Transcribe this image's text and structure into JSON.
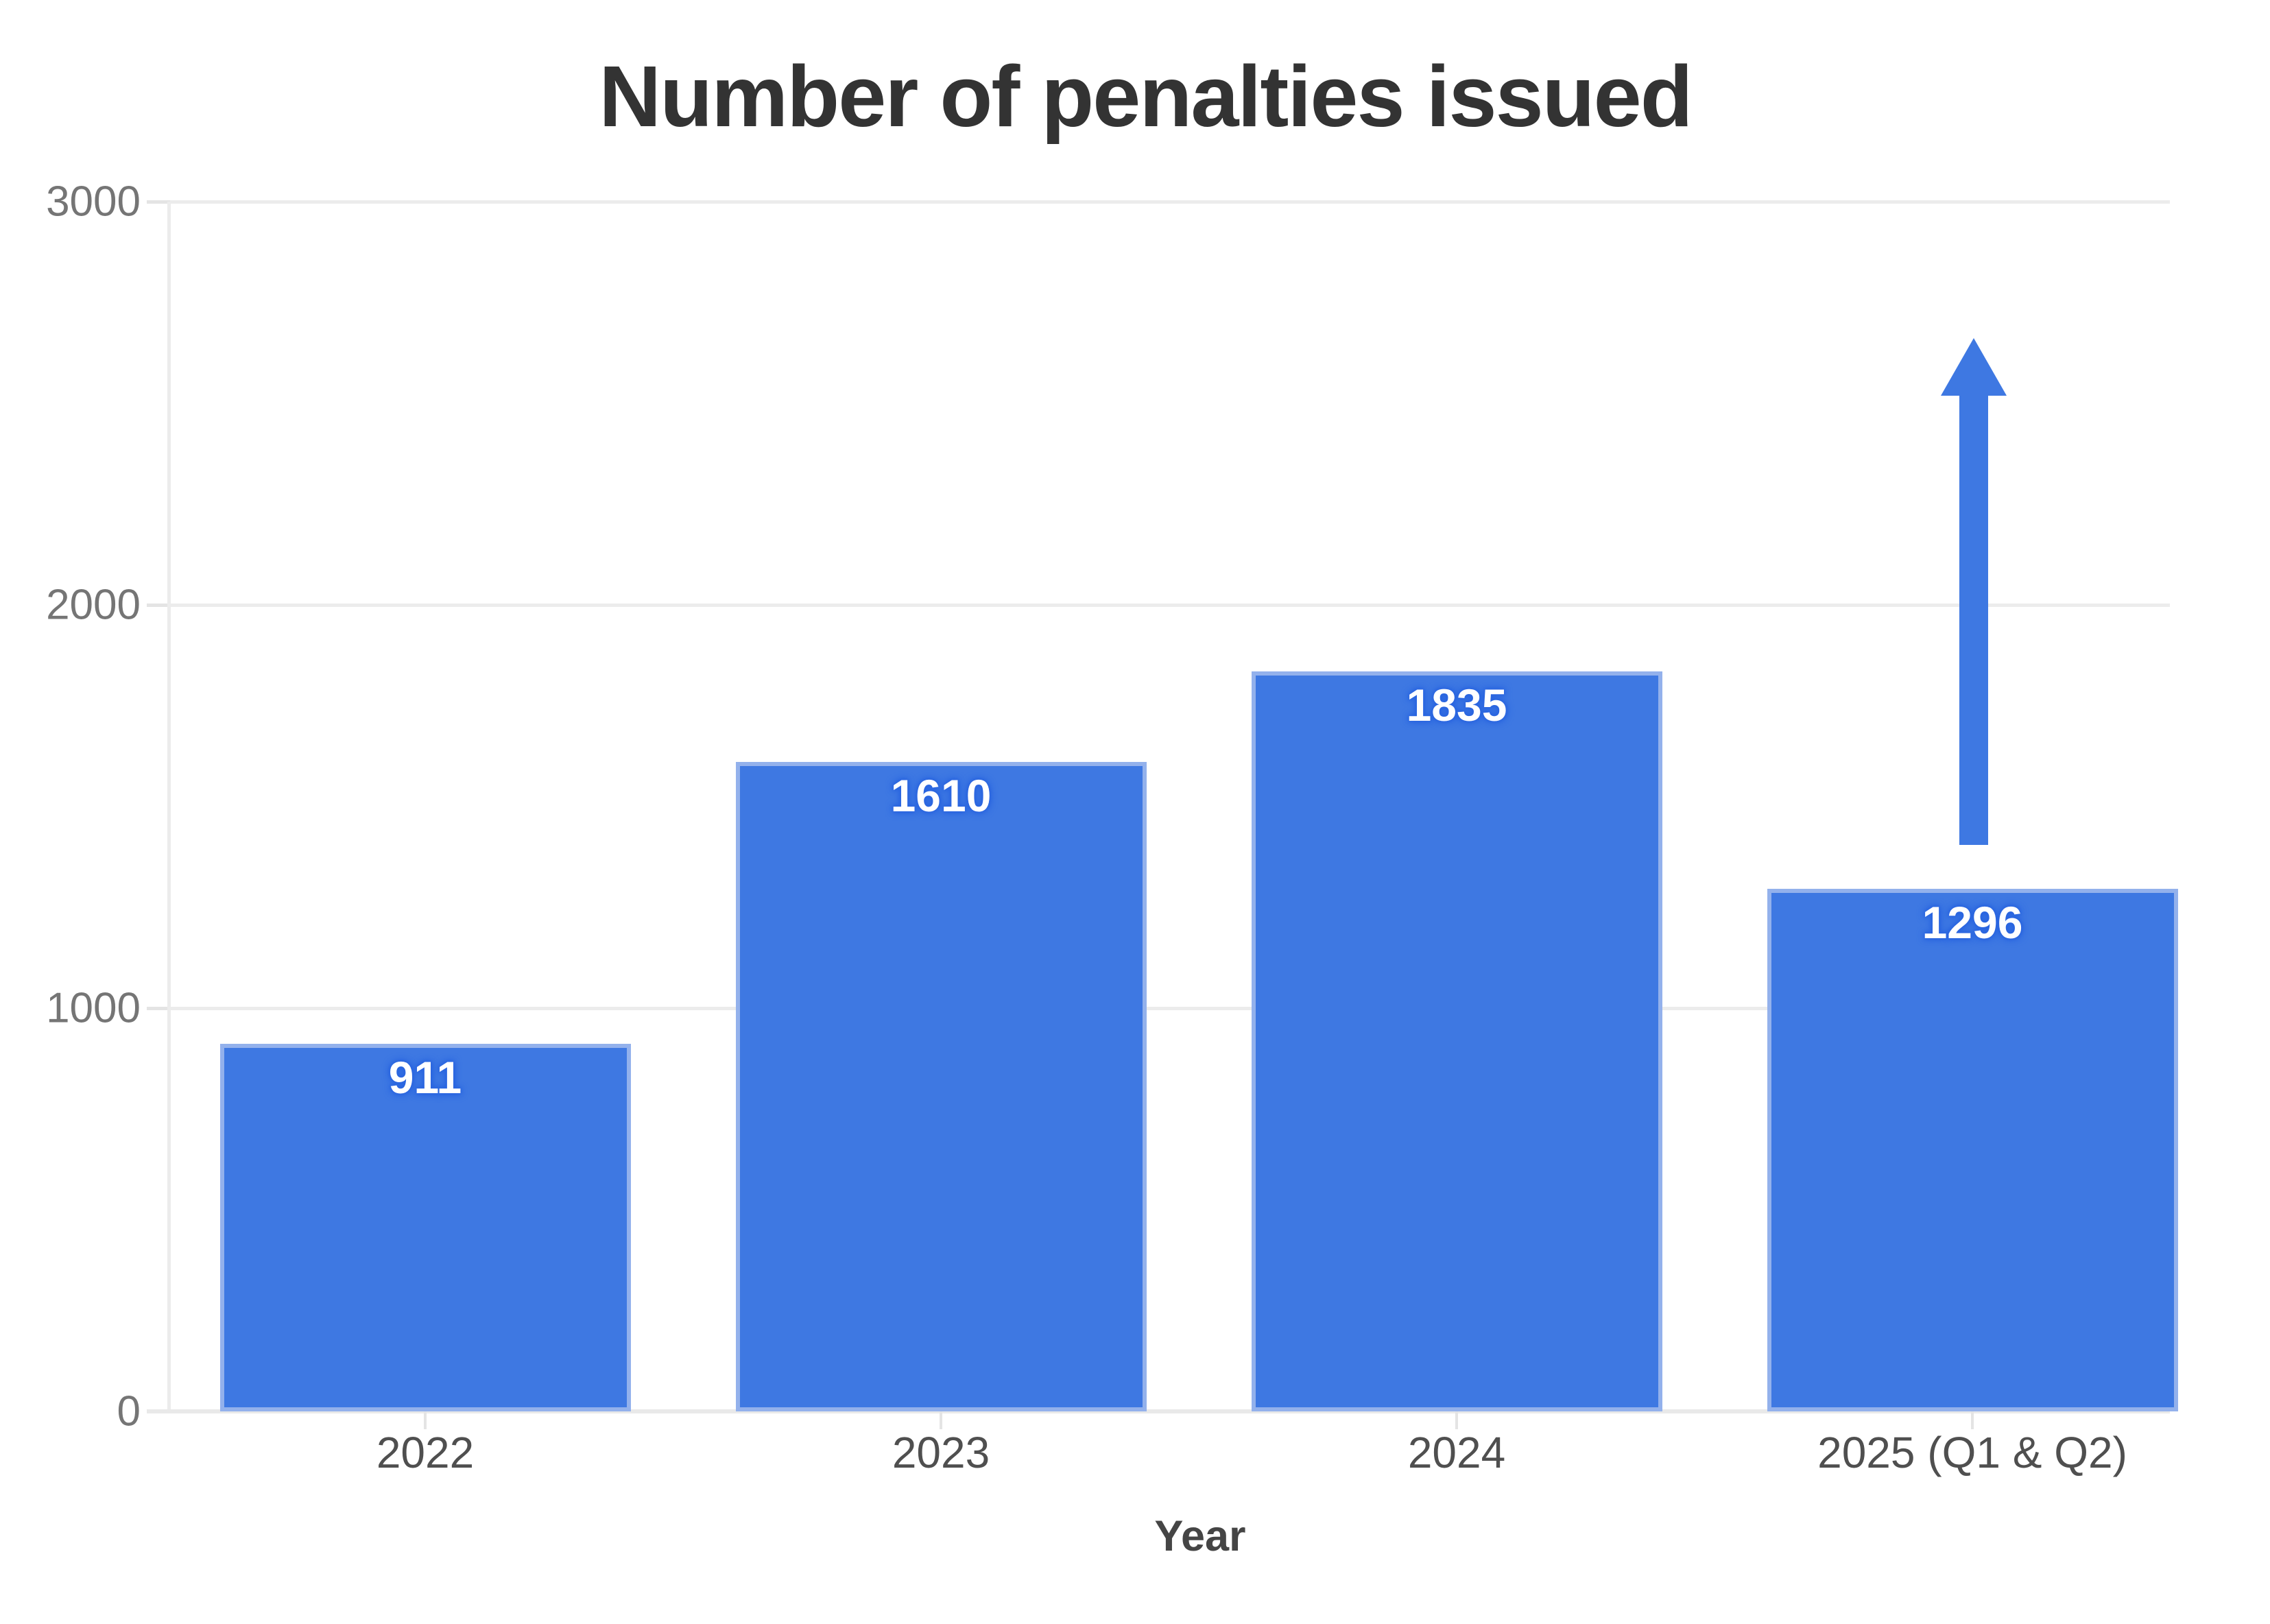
{
  "chart_data": {
    "type": "bar",
    "title": "Number of penalties issued",
    "xlabel": "Year",
    "ylabel": "",
    "categories": [
      "2022",
      "2023",
      "2024",
      "2025 (Q1 & Q2)"
    ],
    "values": [
      911,
      1610,
      1835,
      1296
    ],
    "y_ticks": [
      0,
      1000,
      2000,
      3000
    ],
    "ylim": [
      0,
      3000
    ],
    "grid": "horizontal",
    "legend": "none",
    "bar_color": "#3e78e2",
    "bar_border_color": "#93b1ec",
    "value_label_color": "#ffffff",
    "title_color": "#333333",
    "axis_label_color": "#4f4f4f",
    "tick_label_color": "#757575"
  },
  "annotations": {
    "up_arrow": {
      "meaning": "upward trend indicator above the 2025 (Q1 & Q2) bar",
      "target_category": "2025 (Q1 & Q2)",
      "color": "#3e78e2"
    }
  }
}
